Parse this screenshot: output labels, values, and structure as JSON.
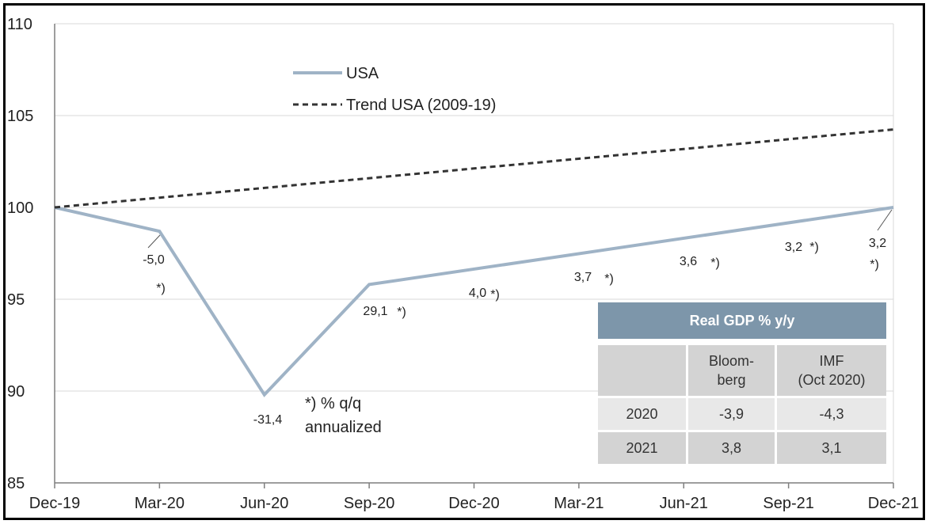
{
  "chart_data": {
    "type": "line",
    "x": [
      "Dec-19",
      "Mar-20",
      "Jun-20",
      "Sep-20",
      "Dec-20",
      "Mar-21",
      "Jun-21",
      "Sep-21",
      "Dec-21"
    ],
    "ylim": [
      85,
      110
    ],
    "yticks": [
      85,
      90,
      95,
      100,
      105,
      110
    ],
    "grid": true,
    "legend_position": "top-left",
    "series": [
      {
        "name": "USA",
        "style": "solid",
        "color": "#9fb3c6",
        "values": [
          100,
          98.7,
          89.8,
          95.8,
          null,
          null,
          null,
          null,
          100
        ]
      },
      {
        "name": "Trend USA (2009-19)",
        "style": "dashed",
        "color": "#333333",
        "values": [
          100,
          100.53,
          101.06,
          101.59,
          102.12,
          102.65,
          103.18,
          103.71,
          104.24
        ]
      }
    ],
    "annotations": [
      {
        "value": "-5,0",
        "marker": "*)"
      },
      {
        "value": "-31,4",
        "marker": ""
      },
      {
        "value": "29,1",
        "marker": "*)"
      },
      {
        "value": "4,0",
        "marker": "*)"
      },
      {
        "value": "3,7",
        "marker": "*)"
      },
      {
        "value": "3,6",
        "marker": "*)"
      },
      {
        "value": "3,2",
        "marker": "*)"
      },
      {
        "value": "3,2",
        "marker": "*)"
      }
    ],
    "footnote": [
      "*) % q/q",
      "annualized"
    ]
  },
  "table": {
    "title": "Real GDP % y/y",
    "headers": [
      [
        "",
        ""
      ],
      [
        "Bloom-",
        "berg"
      ],
      [
        "IMF",
        "(Oct 2020)"
      ]
    ],
    "rows": [
      [
        "2020",
        "-3,9",
        "-4,3"
      ],
      [
        "2021",
        "3,8",
        "3,1"
      ]
    ]
  }
}
